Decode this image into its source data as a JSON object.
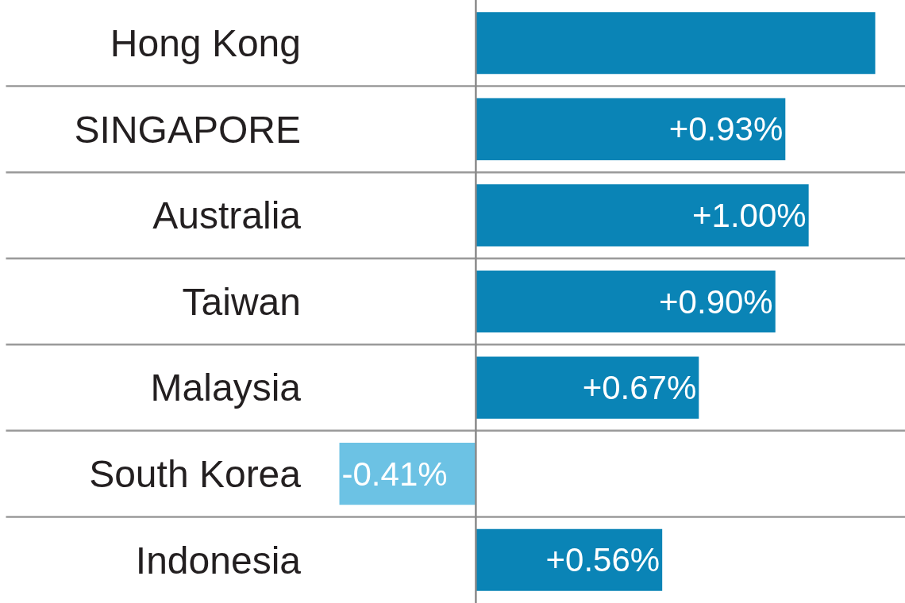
{
  "chart_data": {
    "type": "bar",
    "orientation": "horizontal",
    "categories": [
      "Hong Kong",
      "SINGAPORE",
      "Australia",
      "Taiwan",
      "Malaysia",
      "South Korea",
      "Indonesia"
    ],
    "values": [
      1.2,
      0.93,
      1.0,
      0.9,
      0.67,
      -0.41,
      0.56
    ],
    "colors": [
      "#0a84b6",
      "#0a84b6",
      "#0a84b6",
      "#0a84b6",
      "#0a84b6",
      "#6cc2e4",
      "#0a84b6"
    ],
    "value_labels": [
      null,
      "+0.93%",
      "+1.00%",
      "+0.90%",
      "+0.67%",
      "-0.41%",
      "+0.56%"
    ],
    "grid": true,
    "tick_labels": "y"
  }
}
